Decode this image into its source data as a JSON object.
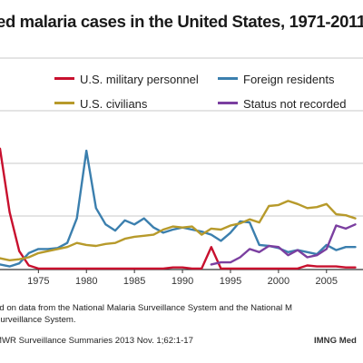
{
  "title": "ed malaria cases in the United States, 1971-2011",
  "notes": [
    "ed on data from the National Malaria Surveillance System and the National M",
    "Surveillance System."
  ],
  "source": "MWR Surveillance Summaries 2013 Nov. 1;62:1-17",
  "credit": "IMNG Med",
  "colors": {
    "military": "#c8102e",
    "foreign": "#3b7fae",
    "civilians": "#b79a2b",
    "unknown": "#7b3fa0",
    "grid": "#c8c8c8",
    "axis": "#333333"
  },
  "chart_data": {
    "type": "line",
    "x_ticks": [
      1975,
      1980,
      1985,
      1990,
      1995,
      2000,
      2005
    ],
    "xlim": [
      1971,
      2008.8
    ],
    "ylim": [
      0,
      1050
    ],
    "grid": "horizontal",
    "legend_position": "top",
    "series": [
      {
        "name": "U.S. military personnel",
        "color": "#c8102e",
        "x": [
          1971,
          1972,
          1973,
          1974,
          1975,
          1976,
          1977,
          1978,
          1979,
          1980,
          1981,
          1982,
          1983,
          1984,
          1985,
          1986,
          1987,
          1988,
          1989,
          1990,
          1991,
          1992,
          1993,
          1994,
          1995,
          1996,
          1997,
          1998,
          1999,
          2000,
          2001,
          2002,
          2003,
          2004,
          2005,
          2006,
          2007,
          2008
        ],
        "y": [
          590,
          280,
          90,
          20,
          5,
          5,
          5,
          5,
          5,
          5,
          5,
          5,
          5,
          5,
          5,
          5,
          5,
          5,
          10,
          10,
          5,
          5,
          110,
          5,
          5,
          5,
          5,
          5,
          5,
          5,
          5,
          5,
          20,
          15,
          15,
          15,
          10,
          10
        ]
      },
      {
        "name": "Foreign residents",
        "color": "#3b7fae",
        "x": [
          1971,
          1972,
          1973,
          1974,
          1975,
          1976,
          1977,
          1978,
          1979,
          1980,
          1981,
          1982,
          1983,
          1984,
          1985,
          1986,
          1987,
          1988,
          1989,
          1990,
          1991,
          1992,
          1993,
          1994,
          1995,
          1996,
          1997,
          1998,
          1999,
          2000,
          2001,
          2002,
          2003,
          2004,
          2005,
          2006,
          2007,
          2008
        ],
        "y": [
          25,
          15,
          30,
          80,
          100,
          100,
          105,
          130,
          250,
          580,
          300,
          220,
          190,
          240,
          220,
          250,
          205,
          180,
          195,
          205,
          195,
          185,
          170,
          140,
          180,
          235,
          230,
          120,
          115,
          105,
          85,
          95,
          85,
          75,
          120,
          95,
          110,
          110
        ]
      },
      {
        "name": "U.S. civilians",
        "color": "#b79a2b",
        "x": [
          1971,
          1972,
          1973,
          1974,
          1975,
          1976,
          1977,
          1978,
          1979,
          1980,
          1981,
          1982,
          1983,
          1984,
          1985,
          1986,
          1987,
          1988,
          1989,
          1990,
          1991,
          1992,
          1993,
          1994,
          1995,
          1996,
          1997,
          1998,
          1999,
          2000,
          2001,
          2002,
          2003,
          2004,
          2005,
          2006,
          2007,
          2008
        ],
        "y": [
          55,
          45,
          50,
          60,
          80,
          90,
          100,
          110,
          130,
          120,
          115,
          125,
          130,
          150,
          160,
          165,
          170,
          195,
          210,
          205,
          210,
          170,
          200,
          195,
          215,
          225,
          245,
          230,
          310,
          315,
          335,
          320,
          300,
          305,
          320,
          270,
          265,
          250
        ]
      },
      {
        "name": "Status not recorded",
        "color": "#7b3fa0",
        "x": [
          1993,
          1994,
          1995,
          1996,
          1997,
          1998,
          1999,
          2000,
          2001,
          2002,
          2003,
          2004,
          2005,
          2006,
          2007,
          2008
        ],
        "y": [
          25,
          35,
          35,
          60,
          100,
          85,
          115,
          110,
          70,
          95,
          60,
          70,
          100,
          215,
          200,
          220
        ]
      }
    ]
  }
}
